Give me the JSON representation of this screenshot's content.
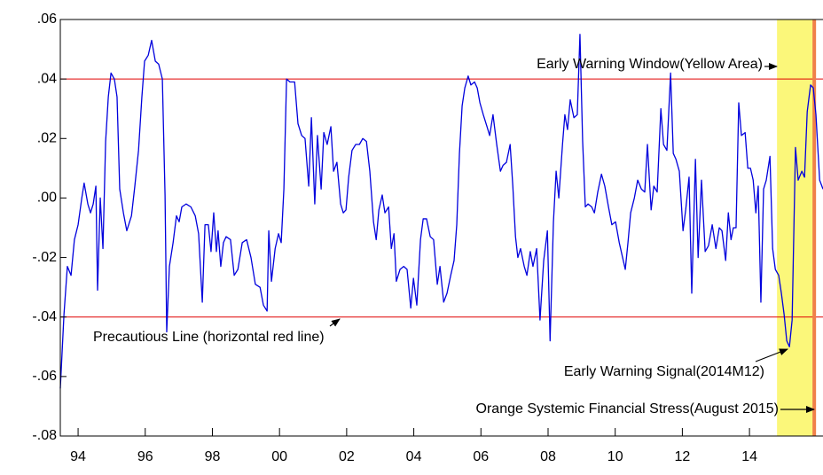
{
  "chart_data": {
    "type": "line",
    "xlim": [
      1993.47,
      2016.19
    ],
    "ylim": [
      -0.08,
      0.06
    ],
    "xticks": [
      {
        "value": 1994,
        "label": "94"
      },
      {
        "value": 1996,
        "label": "96"
      },
      {
        "value": 1998,
        "label": "98"
      },
      {
        "value": 2000,
        "label": "00"
      },
      {
        "value": 2002,
        "label": "02"
      },
      {
        "value": 2004,
        "label": "04"
      },
      {
        "value": 2006,
        "label": "06"
      },
      {
        "value": 2008,
        "label": "08"
      },
      {
        "value": 2010,
        "label": "10"
      },
      {
        "value": 2012,
        "label": "12"
      },
      {
        "value": 2014,
        "label": "14"
      }
    ],
    "yticks": [
      {
        "value": 0.06,
        "label": ".06"
      },
      {
        "value": 0.04,
        "label": ".04"
      },
      {
        "value": 0.02,
        "label": ".02"
      },
      {
        "value": 0,
        "label": ".00"
      },
      {
        "value": -0.02,
        "label": "-.02"
      },
      {
        "value": -0.04,
        "label": "-.04"
      },
      {
        "value": -0.06,
        "label": "-.06"
      },
      {
        "value": -0.08,
        "label": "-.08"
      }
    ],
    "reference_lines": [
      {
        "value": 0.04,
        "color": "#e00000"
      },
      {
        "value": -0.04,
        "color": "#e00000"
      }
    ],
    "shaded_region": {
      "x": [
        2014.82,
        2015.93
      ],
      "color": "#fbf77a"
    },
    "vertical_line": {
      "x": 2015.93,
      "color": "#f0804a"
    },
    "annotations": [
      "Early Warning Window(Yellow Area)",
      "Precautious Line (horizontal red line)",
      "Early Warning Signal(2014M12)",
      "Orange Systemic Financial Stress(August 2015)"
    ],
    "series": [
      {
        "color": "#0000dd",
        "x": [
          1993.47,
          1993.58,
          1993.68,
          1993.79,
          1993.89,
          1994.0,
          1994.11,
          1994.18,
          1994.29,
          1994.37,
          1994.45,
          1994.53,
          1994.58,
          1994.66,
          1994.74,
          1994.82,
          1994.9,
          1994.98,
          1995.08,
          1995.16,
          1995.24,
          1995.35,
          1995.45,
          1995.59,
          1995.69,
          1995.8,
          1995.9,
          1995.98,
          1996.09,
          1996.19,
          1996.3,
          1996.4,
          1996.51,
          1996.59,
          1996.64,
          1996.72,
          1996.83,
          1996.93,
          1997.01,
          1997.09,
          1997.22,
          1997.36,
          1997.49,
          1997.59,
          1997.7,
          1997.78,
          1997.88,
          1997.96,
          1998.04,
          1998.12,
          1998.17,
          1998.25,
          1998.33,
          1998.41,
          1998.54,
          1998.65,
          1998.76,
          1998.89,
          1999.02,
          1999.15,
          1999.28,
          1999.42,
          1999.52,
          1999.63,
          1999.68,
          1999.76,
          1999.87,
          1999.97,
          2000.05,
          2000.13,
          2000.21,
          2000.31,
          2000.45,
          2000.55,
          2000.66,
          2000.76,
          2000.87,
          2000.95,
          2001.05,
          2001.13,
          2001.24,
          2001.32,
          2001.42,
          2001.53,
          2001.61,
          2001.71,
          2001.82,
          2001.9,
          2001.98,
          2002.06,
          2002.16,
          2002.27,
          2002.38,
          2002.48,
          2002.59,
          2002.69,
          2002.8,
          2002.88,
          2002.96,
          2003.06,
          2003.14,
          2003.25,
          2003.33,
          2003.41,
          2003.48,
          2003.59,
          2003.7,
          2003.8,
          2003.91,
          2003.99,
          2004.09,
          2004.2,
          2004.28,
          2004.38,
          2004.49,
          2004.59,
          2004.7,
          2004.78,
          2004.89,
          2004.99,
          2005.1,
          2005.2,
          2005.28,
          2005.36,
          2005.44,
          2005.52,
          2005.62,
          2005.7,
          2005.81,
          2005.89,
          2005.97,
          2006.07,
          2006.18,
          2006.26,
          2006.36,
          2006.47,
          2006.58,
          2006.66,
          2006.76,
          2006.87,
          2006.95,
          2007.03,
          2007.1,
          2007.18,
          2007.29,
          2007.37,
          2007.47,
          2007.55,
          2007.66,
          2007.76,
          2007.87,
          2007.98,
          2008.06,
          2008.16,
          2008.24,
          2008.32,
          2008.43,
          2008.5,
          2008.58,
          2008.66,
          2008.77,
          2008.87,
          2008.95,
          2009.03,
          2009.11,
          2009.19,
          2009.3,
          2009.38,
          2009.48,
          2009.59,
          2009.69,
          2009.8,
          2009.9,
          2010.01,
          2010.12,
          2010.22,
          2010.3,
          2010.38,
          2010.46,
          2010.57,
          2010.67,
          2010.78,
          2010.88,
          2010.96,
          2011.07,
          2011.15,
          2011.25,
          2011.36,
          2011.44,
          2011.54,
          2011.65,
          2011.73,
          2011.81,
          2011.91,
          2012.02,
          2012.1,
          2012.2,
          2012.28,
          2012.39,
          2012.47,
          2012.57,
          2012.68,
          2012.78,
          2012.89,
          2013.0,
          2013.1,
          2013.18,
          2013.29,
          2013.37,
          2013.45,
          2013.52,
          2013.6,
          2013.68,
          2013.76,
          2013.87,
          2013.95,
          2014.03,
          2014.11,
          2014.19,
          2014.26,
          2014.34,
          2014.42,
          2014.5,
          2014.61,
          2014.69,
          2014.77,
          2014.87,
          2014.95,
          2015.03,
          2015.11,
          2015.19,
          2015.27,
          2015.37,
          2015.45,
          2015.56,
          2015.64,
          2015.72,
          2015.82,
          2015.9,
          2015.98,
          2016.09,
          2016.19
        ],
        "values": [
          -0.064,
          -0.039,
          -0.023,
          -0.026,
          -0.014,
          -0.009,
          0,
          0.005,
          -0.002,
          -0.005,
          -0.002,
          0.004,
          -0.031,
          0,
          -0.017,
          0.019,
          0.034,
          0.042,
          0.04,
          0.034,
          0.003,
          -0.005,
          -0.011,
          -0.006,
          0.004,
          0.016,
          0.034,
          0.046,
          0.048,
          0.053,
          0.046,
          0.045,
          0.04,
          0.001,
          -0.045,
          -0.023,
          -0.015,
          -0.006,
          -0.008,
          -0.003,
          -0.002,
          -0.003,
          -0.006,
          -0.012,
          -0.035,
          -0.009,
          -0.009,
          -0.018,
          -0.005,
          -0.018,
          -0.011,
          -0.023,
          -0.015,
          -0.013,
          -0.014,
          -0.026,
          -0.024,
          -0.015,
          -0.014,
          -0.02,
          -0.029,
          -0.03,
          -0.036,
          -0.038,
          -0.011,
          -0.028,
          -0.017,
          -0.012,
          -0.015,
          0.003,
          0.04,
          0.039,
          0.039,
          0.025,
          0.021,
          0.02,
          0.004,
          0.027,
          -0.002,
          0.021,
          0.003,
          0.022,
          0.018,
          0.024,
          0.009,
          0.012,
          -0.002,
          -0.005,
          -0.004,
          0.007,
          0.016,
          0.018,
          0.018,
          0.02,
          0.019,
          0.009,
          -0.008,
          -0.014,
          -0.004,
          0.001,
          -0.005,
          -0.003,
          -0.017,
          -0.012,
          -0.028,
          -0.024,
          -0.023,
          -0.024,
          -0.037,
          -0.027,
          -0.036,
          -0.014,
          -0.007,
          -0.007,
          -0.013,
          -0.014,
          -0.029,
          -0.023,
          -0.035,
          -0.032,
          -0.026,
          -0.021,
          -0.009,
          0.015,
          0.031,
          0.037,
          0.041,
          0.038,
          0.039,
          0.037,
          0.032,
          0.028,
          0.024,
          0.021,
          0.028,
          0.018,
          0.009,
          0.011,
          0.012,
          0.018,
          0.004,
          -0.013,
          -0.02,
          -0.017,
          -0.023,
          -0.026,
          -0.018,
          -0.023,
          -0.017,
          -0.041,
          -0.021,
          -0.011,
          -0.048,
          -0.008,
          0.009,
          0,
          0.018,
          0.028,
          0.023,
          0.033,
          0.027,
          0.028,
          0.055,
          0.019,
          -0.003,
          -0.002,
          -0.003,
          -0.005,
          0.002,
          0.008,
          0.004,
          -0.003,
          -0.009,
          -0.008,
          -0.015,
          -0.02,
          -0.024,
          -0.015,
          -0.005,
          0,
          0.006,
          0.003,
          0.002,
          0.018,
          -0.004,
          0.004,
          0.002,
          0.03,
          0.018,
          0.016,
          0.042,
          0.015,
          0.013,
          0.009,
          -0.011,
          -0.004,
          0.007,
          -0.032,
          0.013,
          -0.02,
          0.006,
          -0.018,
          -0.016,
          -0.009,
          -0.017,
          -0.01,
          -0.011,
          -0.021,
          -0.005,
          -0.014,
          -0.01,
          -0.01,
          0.032,
          0.021,
          0.022,
          0.01,
          0.01,
          0.006,
          -0.005,
          0.004,
          -0.035,
          0.003,
          0.006,
          0.014,
          -0.017,
          -0.024,
          -0.026,
          -0.032,
          -0.039,
          -0.048,
          -0.05,
          -0.041,
          0.017,
          0.006,
          0.009,
          0.007,
          0.029,
          0.038,
          0.037,
          0.028,
          0.006,
          0.003
        ]
      }
    ]
  }
}
